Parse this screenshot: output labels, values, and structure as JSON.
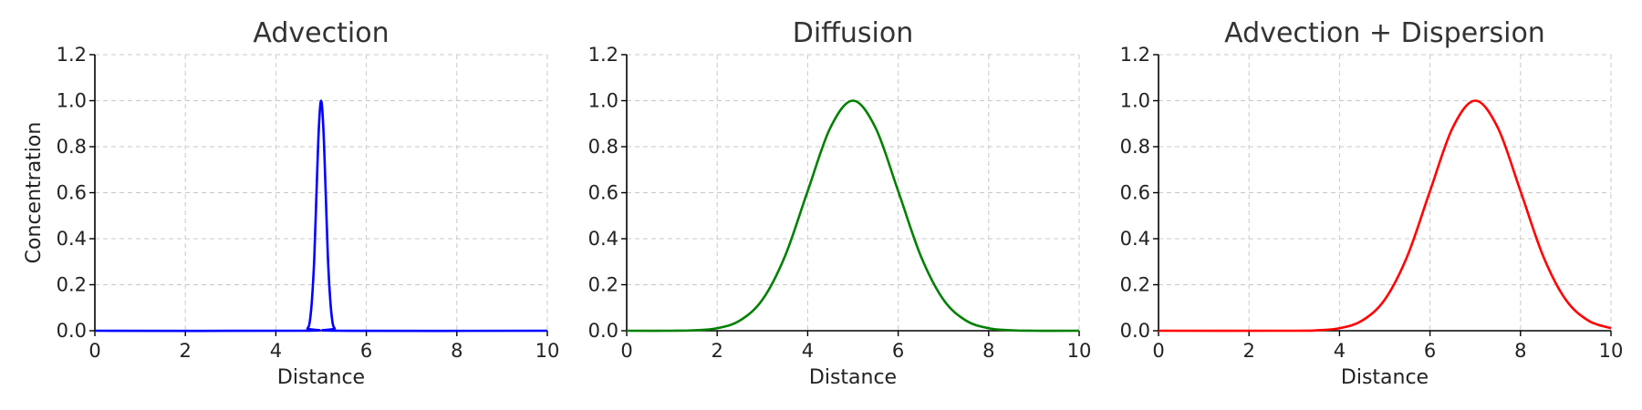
{
  "chart_data": [
    {
      "type": "line",
      "title": "Advection",
      "xlabel": "Distance",
      "ylabel": "Concentration",
      "xlim": [
        0,
        10
      ],
      "ylim": [
        0,
        1.2
      ],
      "xticks": [
        "0",
        "2",
        "4",
        "6",
        "8",
        "10"
      ],
      "yticks": [
        "0.0",
        "0.2",
        "0.4",
        "0.6",
        "0.8",
        "1.0",
        "1.2"
      ],
      "grid": true,
      "series": [
        {
          "name": "Advection",
          "color": "#0000ff",
          "x": [
            0,
            4.6,
            4.7,
            4.75,
            4.8,
            4.85,
            4.9,
            4.95,
            5.0,
            5.05,
            5.1,
            5.15,
            5.2,
            5.25,
            5.3,
            5.4,
            10
          ],
          "y": [
            0,
            0,
            0.01,
            0.04,
            0.14,
            0.32,
            0.61,
            0.88,
            1.0,
            0.88,
            0.61,
            0.32,
            0.14,
            0.04,
            0.01,
            0,
            0
          ]
        }
      ]
    },
    {
      "type": "line",
      "title": "Diffusion",
      "xlabel": "Distance",
      "ylabel": "",
      "xlim": [
        0,
        10
      ],
      "ylim": [
        0,
        1.2
      ],
      "xticks": [
        "0",
        "2",
        "4",
        "6",
        "8",
        "10"
      ],
      "yticks": [
        "0.0",
        "0.2",
        "0.4",
        "0.6",
        "0.8",
        "1.0",
        "1.2"
      ],
      "grid": true,
      "series": [
        {
          "name": "Diffusion",
          "color": "#008000",
          "x": [
            0,
            1,
            1.5,
            2,
            2.5,
            3,
            3.5,
            4,
            4.5,
            5,
            5.5,
            6,
            6.5,
            7,
            7.5,
            8,
            8.5,
            9,
            10
          ],
          "y": [
            0,
            0,
            0.002,
            0.011,
            0.044,
            0.135,
            0.325,
            0.607,
            0.882,
            1.0,
            0.882,
            0.607,
            0.325,
            0.135,
            0.044,
            0.011,
            0.002,
            0,
            0
          ]
        }
      ]
    },
    {
      "type": "line",
      "title": "Advection + Dispersion",
      "xlabel": "Distance",
      "ylabel": "",
      "xlim": [
        0,
        10
      ],
      "ylim": [
        0,
        1.2
      ],
      "xticks": [
        "0",
        "2",
        "4",
        "6",
        "8",
        "10"
      ],
      "yticks": [
        "0.0",
        "0.2",
        "0.4",
        "0.6",
        "0.8",
        "1.0",
        "1.2"
      ],
      "grid": true,
      "series": [
        {
          "name": "Advection + Dispersion",
          "color": "#ff0000",
          "x": [
            0,
            3,
            3.5,
            4,
            4.5,
            5,
            5.5,
            6,
            6.5,
            7,
            7.5,
            8,
            8.5,
            9,
            9.5,
            10
          ],
          "y": [
            0,
            0,
            0.002,
            0.011,
            0.044,
            0.135,
            0.325,
            0.607,
            0.882,
            1.0,
            0.882,
            0.607,
            0.325,
            0.135,
            0.044,
            0.011
          ]
        }
      ]
    }
  ]
}
